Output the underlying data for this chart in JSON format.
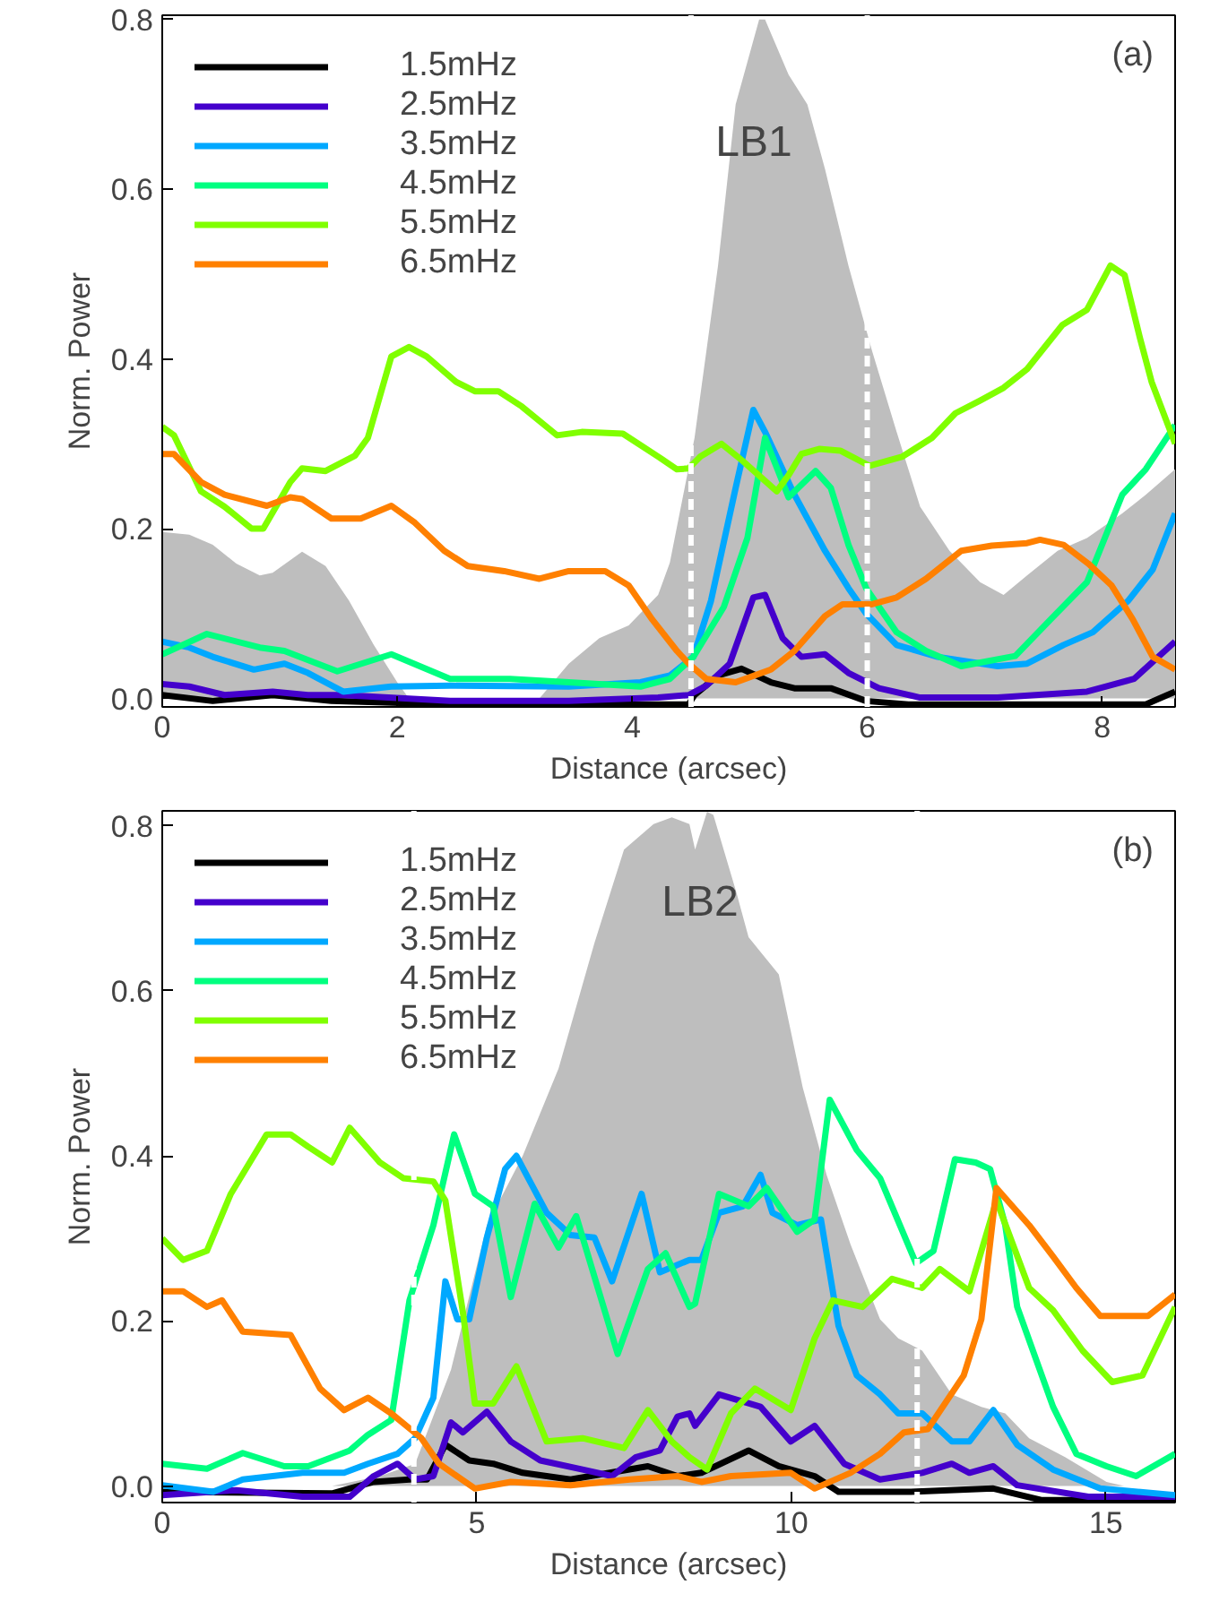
{
  "chart_data": [
    {
      "type": "line",
      "xlabel": "Distance (arcsec)",
      "ylabel": "Norm. Power",
      "xlim": [
        0,
        8.62
      ],
      "ylim": [
        -0.01,
        0.805
      ],
      "xticks": [
        0,
        2,
        4,
        6,
        8
      ],
      "yticks": [
        {
          "value": 0,
          "label": "0.0"
        },
        0.2,
        0.4,
        0.6,
        0.8
      ],
      "legend": "top left",
      "line_style": "solid",
      "annotations": [
        "LB1",
        "(a)"
      ],
      "ref_lines": [
        {
          "axis": "x",
          "value": 4.5,
          "color": "#ffffff",
          "line_style": "dashed"
        },
        {
          "axis": "x",
          "value": 6,
          "color": "#ffffff",
          "line_style": "dashed"
        }
      ],
      "series": [
        {
          "type": "area",
          "color": "#bebebe",
          "x": [
            0,
            0.23,
            0.43,
            0.63,
            0.83,
            0.94,
            1.19,
            1.39,
            1.59,
            1.8,
            2.0,
            2.1,
            3.21,
            3.46,
            3.72,
            3.97,
            4.22,
            4.32,
            4.53,
            4.73,
            4.88,
            5.08,
            5.13,
            5.33,
            5.49,
            5.64,
            5.84,
            6.04,
            6.25,
            6.45,
            6.7,
            6.96,
            7.16,
            7.36,
            7.62,
            7.87,
            8.17,
            8.37,
            8.62
          ],
          "values": [
            0.196,
            0.193,
            0.181,
            0.159,
            0.145,
            0.148,
            0.173,
            0.156,
            0.115,
            0.063,
            0.019,
            0,
            0,
            0.041,
            0.071,
            0.086,
            0.122,
            0.16,
            0.307,
            0.51,
            0.7,
            0.8,
            0.8,
            0.735,
            0.7,
            0.624,
            0.51,
            0.41,
            0.314,
            0.226,
            0.174,
            0.137,
            0.122,
            0.145,
            0.174,
            0.189,
            0.218,
            0.24,
            0.27
          ]
        },
        {
          "name": "1.5mHz",
          "color": "#000000",
          "x": [
            0,
            0.43,
            0.94,
            1.44,
            2.45,
            4.48,
            4.53,
            4.73,
            4.93,
            5.18,
            5.38,
            5.69,
            5.99,
            6.35,
            8.37,
            8.62
          ],
          "values": [
            0.004,
            -0.003,
            0.004,
            -0.003,
            -0.007,
            -0.007,
            0.004,
            0.027,
            0.035,
            0.019,
            0.012,
            0.012,
            -0.003,
            -0.007,
            -0.007,
            0.008
          ]
        },
        {
          "name": "2.5mHz",
          "color": "#4400cc",
          "x": [
            0,
            0.23,
            0.53,
            0.94,
            1.24,
            1.54,
            2.45,
            3.46,
            4.22,
            4.48,
            4.63,
            4.83,
            5.03,
            5.13,
            5.28,
            5.44,
            5.64,
            5.84,
            6.1,
            6.45,
            7.11,
            7.87,
            8.27,
            8.62
          ],
          "values": [
            0.017,
            0.014,
            0.004,
            0.008,
            0.004,
            0.004,
            -0.003,
            -0.003,
            0.001,
            0.004,
            0.015,
            0.041,
            0.119,
            0.122,
            0.071,
            0.049,
            0.052,
            0.03,
            0.012,
            0.001,
            0.001,
            0.008,
            0.023,
            0.067
          ]
        },
        {
          "name": "3.5mHz",
          "color": "#00a8ff",
          "x": [
            0,
            0.23,
            0.43,
            0.78,
            1.04,
            1.24,
            1.54,
            1.95,
            2.45,
            3.46,
            4.07,
            4.32,
            4.52,
            4.67,
            4.88,
            5.03,
            5.13,
            5.38,
            5.64,
            5.84,
            5.99,
            6.25,
            6.6,
            7.11,
            7.36,
            7.67,
            7.92,
            8.22,
            8.43,
            8.62
          ],
          "values": [
            0.067,
            0.06,
            0.049,
            0.034,
            0.041,
            0.03,
            0.008,
            0.014,
            0.015,
            0.014,
            0.019,
            0.027,
            0.049,
            0.115,
            0.248,
            0.34,
            0.314,
            0.24,
            0.174,
            0.13,
            0.1,
            0.063,
            0.049,
            0.038,
            0.041,
            0.063,
            0.078,
            0.115,
            0.152,
            0.218
          ]
        },
        {
          "name": "4.5mHz",
          "color": "#00ff80",
          "x": [
            0,
            0.38,
            0.83,
            1.04,
            1.49,
            1.95,
            2.45,
            2.96,
            3.46,
            4.07,
            4.32,
            4.52,
            4.78,
            4.98,
            5.13,
            5.33,
            5.56,
            5.69,
            5.84,
            5.99,
            6.25,
            6.5,
            6.8,
            7.26,
            7.56,
            7.87,
            8.17,
            8.37,
            8.62
          ],
          "values": [
            0.052,
            0.076,
            0.06,
            0.056,
            0.032,
            0.052,
            0.023,
            0.023,
            0.019,
            0.014,
            0.023,
            0.049,
            0.108,
            0.189,
            0.307,
            0.237,
            0.268,
            0.248,
            0.181,
            0.13,
            0.078,
            0.056,
            0.038,
            0.05,
            0.093,
            0.137,
            0.24,
            0.27,
            0.322
          ]
        },
        {
          "name": "5.5mHz",
          "color": "#80ff00",
          "x": [
            0,
            0.1,
            0.33,
            0.53,
            0.76,
            0.86,
            1.09,
            1.19,
            1.39,
            1.64,
            1.75,
            1.95,
            2.1,
            2.25,
            2.5,
            2.66,
            2.86,
            3.06,
            3.36,
            3.57,
            3.92,
            4.22,
            4.38,
            4.48,
            4.58,
            4.76,
            4.93,
            5.23,
            5.33,
            5.44,
            5.59,
            5.77,
            6.02,
            6.3,
            6.55,
            6.75,
            6.96,
            7.16,
            7.36,
            7.66,
            7.87,
            8.07,
            8.19,
            8.32,
            8.42,
            8.62
          ],
          "values": [
            0.32,
            0.31,
            0.244,
            0.226,
            0.2,
            0.2,
            0.255,
            0.271,
            0.268,
            0.286,
            0.307,
            0.403,
            0.414,
            0.403,
            0.373,
            0.362,
            0.362,
            0.344,
            0.31,
            0.314,
            0.312,
            0.285,
            0.27,
            0.271,
            0.285,
            0.3,
            0.281,
            0.244,
            0.263,
            0.288,
            0.294,
            0.292,
            0.274,
            0.285,
            0.307,
            0.336,
            0.351,
            0.366,
            0.388,
            0.44,
            0.458,
            0.51,
            0.499,
            0.425,
            0.373,
            0.3
          ]
        },
        {
          "name": "6.5mHz",
          "color": "#ff8000",
          "x": [
            0,
            0.1,
            0.33,
            0.53,
            0.89,
            1.09,
            1.19,
            1.44,
            1.69,
            1.95,
            2.15,
            2.4,
            2.6,
            2.91,
            3.21,
            3.46,
            3.77,
            3.97,
            4.17,
            4.38,
            4.48,
            4.63,
            4.88,
            5.18,
            5.38,
            5.64,
            5.79,
            6.04,
            6.25,
            6.5,
            6.8,
            7.06,
            7.36,
            7.47,
            7.67,
            7.88,
            8.08,
            8.26,
            8.43,
            8.62
          ],
          "values": [
            0.288,
            0.288,
            0.255,
            0.24,
            0.227,
            0.237,
            0.235,
            0.212,
            0.212,
            0.227,
            0.207,
            0.174,
            0.156,
            0.15,
            0.141,
            0.15,
            0.15,
            0.133,
            0.093,
            0.056,
            0.041,
            0.023,
            0.019,
            0.034,
            0.056,
            0.097,
            0.111,
            0.111,
            0.119,
            0.141,
            0.174,
            0.18,
            0.183,
            0.187,
            0.181,
            0.159,
            0.133,
            0.093,
            0.049,
            0.034
          ]
        }
      ]
    },
    {
      "type": "line",
      "xlabel": "Distance (arcsec)",
      "ylabel": "Norm. Power",
      "xlim": [
        0,
        16.1
      ],
      "ylim": [
        -0.02,
        0.818
      ],
      "xticks": [
        0,
        5,
        10,
        15
      ],
      "yticks": [
        {
          "value": 0,
          "label": "0.0"
        },
        0.2,
        0.4,
        0.6,
        0.8
      ],
      "legend": "top left",
      "line_style": "solid",
      "annotations": [
        "LB2",
        "(b)"
      ],
      "ref_lines": [
        {
          "axis": "x",
          "value": 4,
          "color": "#ffffff",
          "line_style": "dashed"
        },
        {
          "axis": "x",
          "value": 12,
          "color": "#ffffff",
          "line_style": "dashed"
        }
      ],
      "series": [
        {
          "type": "area",
          "color": "#bebebe",
          "x": [
            0,
            2.7,
            3.46,
            4.02,
            4.59,
            5.16,
            5.73,
            6.3,
            6.87,
            7.34,
            7.81,
            8.1,
            8.38,
            8.47,
            8.66,
            8.76,
            9.13,
            9.32,
            9.8,
            10.18,
            10.56,
            10.94,
            11.41,
            11.7,
            12.08,
            12.55,
            13.02,
            13.4,
            13.78,
            14.35,
            15.01,
            15.29,
            16.1
          ],
          "values": [
            0,
            0,
            0.012,
            0.027,
            0.141,
            0.316,
            0.4,
            0.506,
            0.658,
            0.771,
            0.802,
            0.81,
            0.802,
            0.771,
            0.817,
            0.813,
            0.718,
            0.665,
            0.62,
            0.483,
            0.377,
            0.293,
            0.202,
            0.179,
            0.164,
            0.111,
            0.096,
            0.088,
            0.058,
            0.035,
            0.005,
            0,
            0
          ]
        },
        {
          "name": "1.5mHz",
          "color": "#000000",
          "x": [
            0,
            2.7,
            3.36,
            3.93,
            4.21,
            4.5,
            4.88,
            5.26,
            5.73,
            6.49,
            7.72,
            8.19,
            8.57,
            9.32,
            9.8,
            10.37,
            10.75,
            11.89,
            13.21,
            13.97,
            16.1
          ],
          "values": [
            -0.007,
            -0.009,
            0.005,
            0.008,
            0.008,
            0.05,
            0.031,
            0.027,
            0.016,
            0.008,
            0.024,
            0.012,
            0.016,
            0.043,
            0.024,
            0.012,
            -0.007,
            -0.007,
            -0.003,
            -0.017,
            -0.017
          ]
        },
        {
          "name": "2.5mHz",
          "color": "#4400cc",
          "x": [
            0,
            1.18,
            2.23,
            2.98,
            3.36,
            3.74,
            4.02,
            4.31,
            4.59,
            4.78,
            5.16,
            5.54,
            6.01,
            6.68,
            7.15,
            7.53,
            7.91,
            8.19,
            8.38,
            8.47,
            8.85,
            9.51,
            9.99,
            10.37,
            10.84,
            11.41,
            12.08,
            12.55,
            12.83,
            13.21,
            13.59,
            14.72,
            16.1
          ],
          "values": [
            -0.011,
            -0.005,
            -0.013,
            -0.013,
            0.012,
            0.027,
            0.008,
            0.012,
            0.077,
            0.065,
            0.09,
            0.054,
            0.031,
            0.02,
            0.012,
            0.035,
            0.043,
            0.084,
            0.088,
            0.073,
            0.111,
            0.096,
            0.054,
            0.073,
            0.027,
            0.008,
            0.016,
            0.027,
            0.016,
            0.024,
            0.001,
            -0.013,
            -0.013
          ]
        },
        {
          "name": "3.5mHz",
          "color": "#00a8ff",
          "x": [
            0,
            0.81,
            1.28,
            2.23,
            2.89,
            3.27,
            3.74,
            4.02,
            4.31,
            4.5,
            4.69,
            4.88,
            5.16,
            5.45,
            5.63,
            6.11,
            6.49,
            6.87,
            7.15,
            7.62,
            7.91,
            8.38,
            8.57,
            8.85,
            9.23,
            9.51,
            9.7,
            10.09,
            10.47,
            10.75,
            11.04,
            11.41,
            11.7,
            12.08,
            12.55,
            12.83,
            13.21,
            13.59,
            14.16,
            14.91,
            16.1
          ],
          "values": [
            0.001,
            -0.007,
            0.008,
            0.016,
            0.016,
            0.027,
            0.039,
            0.058,
            0.107,
            0.248,
            0.202,
            0.202,
            0.301,
            0.384,
            0.4,
            0.331,
            0.304,
            0.301,
            0.248,
            0.354,
            0.259,
            0.274,
            0.274,
            0.331,
            0.339,
            0.377,
            0.331,
            0.316,
            0.323,
            0.194,
            0.134,
            0.111,
            0.088,
            0.088,
            0.054,
            0.054,
            0.092,
            0.05,
            0.02,
            -0.003,
            -0.011
          ]
        },
        {
          "name": "4.5mHz",
          "color": "#00ff80",
          "x": [
            0,
            0.71,
            1.28,
            1.94,
            2.32,
            2.98,
            3.27,
            3.64,
            3.93,
            4.31,
            4.64,
            4.97,
            5.26,
            5.54,
            5.92,
            6.3,
            6.58,
            7.24,
            7.72,
            8.0,
            8.38,
            8.47,
            8.85,
            9.32,
            9.61,
            10.09,
            10.37,
            10.61,
            11.04,
            11.41,
            11.98,
            12.26,
            12.6,
            12.93,
            13.16,
            13.4,
            13.59,
            14.16,
            14.53,
            15.01,
            15.48,
            16.1
          ],
          "values": [
            0.027,
            0.021,
            0.04,
            0.024,
            0.024,
            0.043,
            0.062,
            0.08,
            0.225,
            0.316,
            0.426,
            0.354,
            0.339,
            0.229,
            0.342,
            0.289,
            0.327,
            0.16,
            0.263,
            0.282,
            0.217,
            0.221,
            0.354,
            0.339,
            0.361,
            0.308,
            0.323,
            0.468,
            0.407,
            0.373,
            0.27,
            0.285,
            0.396,
            0.392,
            0.384,
            0.316,
            0.217,
            0.096,
            0.039,
            0.024,
            0.012,
            0.039
          ]
        },
        {
          "name": "5.5mHz",
          "color": "#80ff00",
          "x": [
            0,
            0.33,
            0.71,
            1.09,
            1.66,
            2.04,
            2.32,
            2.7,
            2.98,
            3.46,
            3.83,
            4.31,
            4.5,
            4.78,
            4.97,
            5.26,
            5.63,
            6.11,
            6.68,
            7.34,
            7.72,
            8.1,
            8.38,
            8.66,
            9.04,
            9.42,
            9.99,
            10.37,
            10.66,
            11.13,
            11.6,
            12.08,
            12.36,
            12.83,
            13.26,
            13.78,
            14.16,
            14.63,
            15.1,
            15.58,
            16.1
          ],
          "values": [
            0.3,
            0.274,
            0.285,
            0.354,
            0.426,
            0.426,
            0.411,
            0.392,
            0.434,
            0.392,
            0.373,
            0.369,
            0.346,
            0.21,
            0.1,
            0.1,
            0.145,
            0.054,
            0.058,
            0.046,
            0.092,
            0.054,
            0.035,
            0.02,
            0.088,
            0.118,
            0.092,
            0.179,
            0.225,
            0.217,
            0.251,
            0.24,
            0.263,
            0.236,
            0.346,
            0.24,
            0.213,
            0.164,
            0.126,
            0.134,
            0.217
          ]
        },
        {
          "name": "6.5mHz",
          "color": "#ff8000",
          "x": [
            0,
            0.33,
            0.71,
            0.95,
            1.28,
            2.04,
            2.51,
            2.89,
            3.27,
            3.64,
            4.12,
            4.4,
            4.97,
            5.54,
            6.49,
            7.43,
            8.19,
            8.57,
            9.04,
            9.99,
            10.37,
            10.94,
            11.41,
            11.79,
            12.17,
            12.74,
            13.02,
            13.26,
            13.78,
            14.16,
            14.53,
            14.91,
            15.67,
            16.1
          ],
          "values": [
            0.236,
            0.236,
            0.217,
            0.225,
            0.187,
            0.183,
            0.118,
            0.092,
            0.107,
            0.088,
            0.058,
            0.027,
            -0.003,
            0.005,
            0.001,
            0.008,
            0.012,
            0.005,
            0.012,
            0.016,
            -0.003,
            0.016,
            0.039,
            0.065,
            0.069,
            0.134,
            0.202,
            0.361,
            0.316,
            0.278,
            0.24,
            0.206,
            0.206,
            0.232
          ]
        }
      ]
    }
  ]
}
